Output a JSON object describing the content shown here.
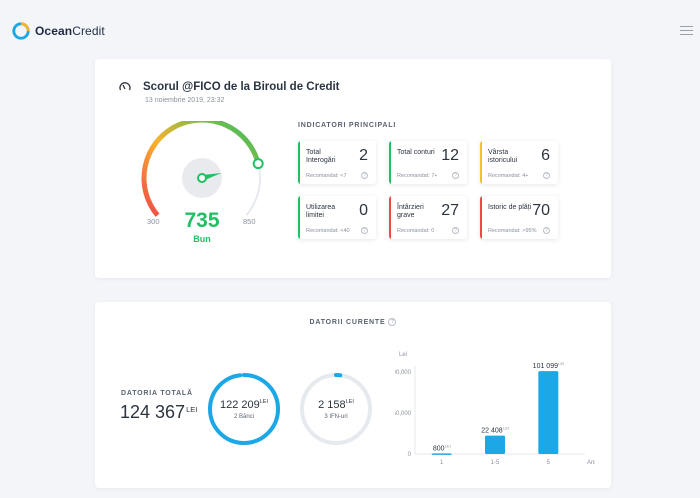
{
  "header": {
    "brand_bold": "Ocean",
    "brand_light": "Credit",
    "logo_icon": "ocean-credit-logo-icon",
    "menu_icon": "hamburger-menu-icon"
  },
  "score_card": {
    "title": "Scorul @FICO de la Biroul de Credit",
    "date": "13 noiembrie 2019, 23:32",
    "score": "735",
    "score_label": "Bun",
    "scale_min": "300",
    "scale_max": "850",
    "score_value": 735,
    "score_min": 300,
    "score_max": 850,
    "accent": "#22c064",
    "indicators_title": "INDICATORI PRINCIPALI",
    "indicators": [
      {
        "label": "Total Interogări",
        "value": "2",
        "recommended": "Recomandat: <7",
        "color": "#22c064"
      },
      {
        "label": "Total conturi",
        "value": "12",
        "recommended": "Recomandat: 7+",
        "color": "#22c064"
      },
      {
        "label": "Vârsta istoricului",
        "value": "6",
        "recommended": "Recomandat: 4+",
        "color": "#f6c02b"
      },
      {
        "label": "Utilizarea limitei",
        "value": "0",
        "recommended": "Recomandat: <40",
        "color": "#22c064"
      },
      {
        "label": "Întârzieri grave",
        "value": "27",
        "recommended": "Recomandat: 0",
        "color": "#f04848"
      },
      {
        "label": "Istoric de plăți",
        "value": "70",
        "recommended": "Recomandat: >95%",
        "color": "#f04848"
      }
    ]
  },
  "debt_card": {
    "title": "DATORII CURENTE",
    "total_label": "DATORIA TOTALĂ",
    "total_value": "124 367",
    "total_unit": "LEI",
    "banks": {
      "value": "122 209",
      "unit": "LEI",
      "label": "2 Bănci",
      "fill": 0.98,
      "color": "#1ca7e6"
    },
    "ifn": {
      "value": "2 158",
      "unit": "LEI",
      "label": "3 IFN-uri",
      "fill": 0.02,
      "color": "#1ca7e6"
    }
  },
  "chart_data": {
    "type": "bar",
    "categories": [
      "1",
      "1-5",
      "5"
    ],
    "values": [
      800,
      22408,
      101099
    ],
    "value_labels": [
      "800",
      "22 408",
      "101 099"
    ],
    "value_unit": "LEI",
    "ylabel": "Lei",
    "xlabel": "Ani",
    "yticks": [
      "100,000",
      "50,000",
      "0"
    ],
    "ytick_values": [
      100000,
      50000,
      0
    ],
    "ylim": [
      0,
      100000
    ],
    "color": "#1ca7e6",
    "grid": false
  }
}
